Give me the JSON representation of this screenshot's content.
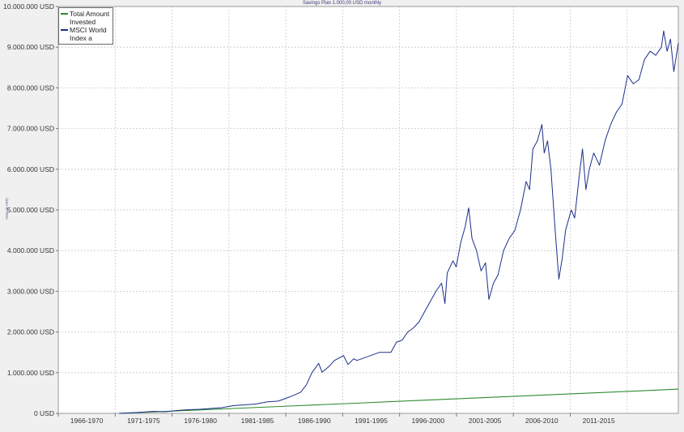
{
  "chart_data": {
    "type": "line",
    "title": "Savings Plan 1.000,00 USD monthly",
    "ylabel": "Value (in USD)",
    "xlabel": "",
    "ylim": [
      0,
      10000000
    ],
    "yticks": [
      "0 USD",
      "1.000.000 USD",
      "2.000.000 USD",
      "3.000.000 USD",
      "4.000.000 USD",
      "5.000.000 USD",
      "6.000.000 USD",
      "7.000.000 USD",
      "8.000.000 USD",
      "9.000.000 USD",
      "10.000.000 USD"
    ],
    "xrange": [
      1964.5,
      2019.5
    ],
    "xticks": [
      "1966-1970",
      "1971-1975",
      "1976-1980",
      "1981-1985",
      "1986-1990",
      "1991-1995",
      "1996-2000",
      "2001-2005",
      "2006-2010",
      "2011-2015"
    ],
    "grid": true,
    "legend_position": "top-left",
    "series": [
      {
        "name": "Total Amount Invested",
        "color": "#2e8b2e",
        "x": [
          1969.9,
          1975,
          1980,
          1985,
          1990,
          1995,
          2000,
          2005,
          2010,
          2015,
          2019.5
        ],
        "y": [
          0,
          60000,
          120000,
          180000,
          240000,
          300000,
          360000,
          420000,
          480000,
          540000,
          595000
        ]
      },
      {
        "name": "MSCI World Index a",
        "color": "#1c2f8a",
        "x": [
          1969.9,
          1971,
          1972,
          1973,
          1974,
          1975,
          1976,
          1977,
          1978,
          1979,
          1980,
          1981,
          1982,
          1983,
          1984,
          1985,
          1986,
          1986.5,
          1987,
          1987.6,
          1987.9,
          1988.5,
          1989,
          1989.8,
          1990.2,
          1990.7,
          1991,
          1992,
          1993,
          1994,
          1994.5,
          1995,
          1995.5,
          1996,
          1996.5,
          1997,
          1997.5,
          1998,
          1998.5,
          1998.8,
          1999,
          1999.5,
          1999.8,
          2000.2,
          2000.6,
          2000.9,
          2001.2,
          2001.6,
          2002,
          2002.4,
          2002.7,
          2003.1,
          2003.5,
          2004,
          2004.5,
          2005,
          2005.5,
          2006,
          2006.3,
          2006.6,
          2007,
          2007.4,
          2007.6,
          2007.9,
          2008.2,
          2008.6,
          2008.9,
          2009.2,
          2009.5,
          2010,
          2010.3,
          2010.7,
          2011,
          2011.3,
          2011.6,
          2012,
          2012.5,
          2013,
          2013.5,
          2014,
          2014.5,
          2015,
          2015.5,
          2016,
          2016.5,
          2017,
          2017.5,
          2018,
          2018.2,
          2018.5,
          2018.8,
          2019.1,
          2019.5
        ],
        "y": [
          0,
          15000,
          30000,
          50000,
          40000,
          70000,
          90000,
          100000,
          120000,
          140000,
          190000,
          210000,
          230000,
          280000,
          300000,
          400000,
          520000,
          700000,
          1000000,
          1230000,
          1010000,
          1150000,
          1300000,
          1420000,
          1200000,
          1340000,
          1300000,
          1400000,
          1500000,
          1500000,
          1750000,
          1800000,
          2000000,
          2100000,
          2250000,
          2500000,
          2750000,
          3000000,
          3200000,
          2700000,
          3450000,
          3750000,
          3600000,
          4200000,
          4600000,
          5050000,
          4300000,
          4000000,
          3500000,
          3700000,
          2800000,
          3200000,
          3400000,
          4000000,
          4300000,
          4500000,
          5000000,
          5700000,
          5500000,
          6500000,
          6700000,
          7100000,
          6400000,
          6700000,
          6000000,
          4400000,
          3300000,
          3800000,
          4500000,
          5000000,
          4800000,
          5800000,
          6500000,
          5500000,
          6000000,
          6400000,
          6100000,
          6700000,
          7100000,
          7400000,
          7600000,
          8300000,
          8100000,
          8200000,
          8700000,
          8900000,
          8800000,
          9000000,
          9400000,
          8900000,
          9200000,
          8400000,
          9100000
        ]
      }
    ]
  }
}
